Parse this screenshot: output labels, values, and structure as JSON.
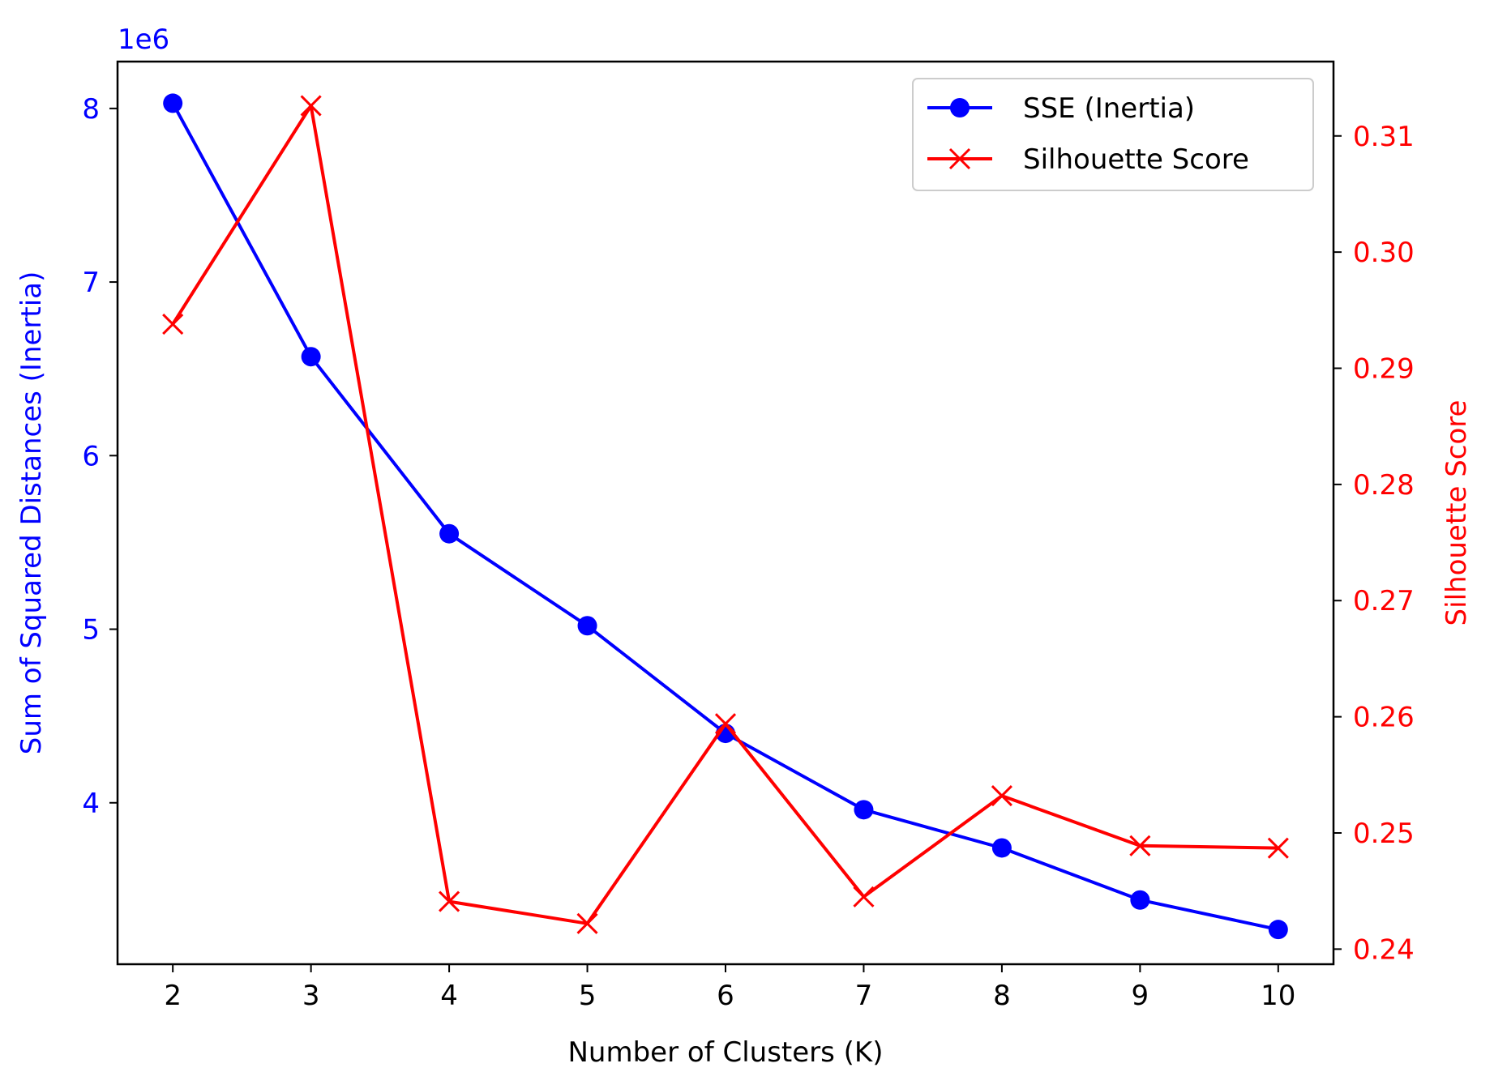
{
  "chart_data": {
    "type": "line",
    "x": [
      2,
      3,
      4,
      5,
      6,
      7,
      8,
      9,
      10
    ],
    "xlabel": "Number of Clusters (K)",
    "xlim": [
      1.6,
      10.4
    ],
    "xticks": [
      "2",
      "3",
      "4",
      "5",
      "6",
      "7",
      "8",
      "9",
      "10"
    ],
    "y_left": {
      "label": "Sum of Squared Distances (Inertia)",
      "offset_text": "1e6",
      "lim": [
        3.07,
        8.27
      ],
      "ticks": [
        4,
        5,
        6,
        7,
        8
      ],
      "tick_labels": [
        "4",
        "5",
        "6",
        "7",
        "8"
      ],
      "color": "#0000ff"
    },
    "y_right": {
      "label": "Silhouette Score",
      "lim": [
        0.2387,
        0.3164
      ],
      "ticks": [
        0.24,
        0.25,
        0.26,
        0.27,
        0.28,
        0.29,
        0.3,
        0.31
      ],
      "tick_labels": [
        "0.24",
        "0.25",
        "0.26",
        "0.27",
        "0.28",
        "0.29",
        "0.30",
        "0.31"
      ],
      "color": "#ff0000"
    },
    "series": [
      {
        "name": "SSE (Inertia)",
        "axis": "left",
        "color": "#0000ff",
        "marker": "circle",
        "values": [
          8.03,
          6.57,
          5.55,
          5.02,
          4.4,
          3.96,
          3.74,
          3.44,
          3.27
        ]
      },
      {
        "name": "Silhouette Score",
        "axis": "right",
        "color": "#ff0000",
        "marker": "x",
        "values": [
          0.2938,
          0.3126,
          0.2441,
          0.2422,
          0.2594,
          0.2445,
          0.2532,
          0.2489,
          0.2487
        ]
      }
    ],
    "legend_position": "top-right",
    "grid": false
  }
}
